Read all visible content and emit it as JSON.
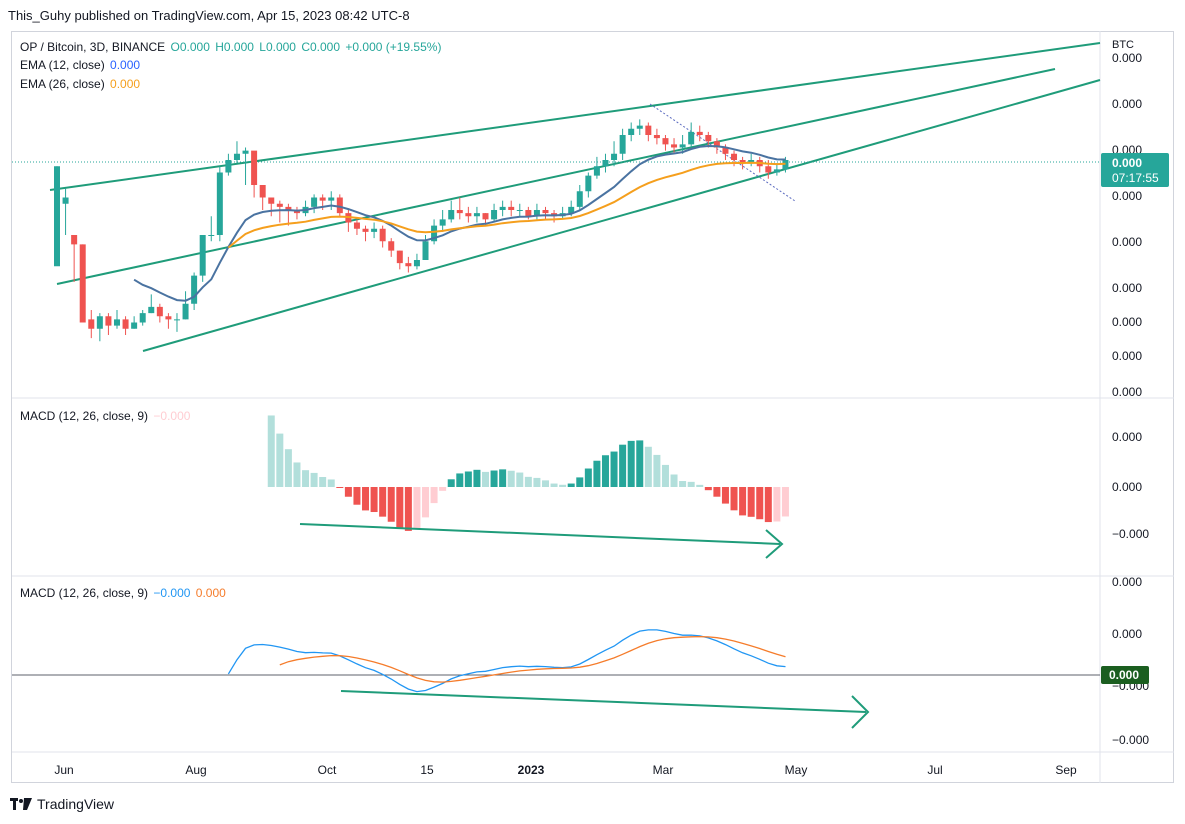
{
  "header": {
    "text": "This_Guhy published on TradingView.com, Apr 15, 2023 08:42 UTC-8"
  },
  "legend": {
    "symbol": "OP / Bitcoin, 3D, BINANCE",
    "o": "O0.000",
    "h": "H0.000",
    "l": "L0.000",
    "c": "C0.000",
    "change": "+0.000 (+19.55%)",
    "ema12_label": "EMA (12, close)",
    "ema12_value": "0.000",
    "ema26_label": "EMA (26, close)",
    "ema26_value": "0.000",
    "macd_hist_label": "MACD (12, 26, close, 9)",
    "macd_hist_value": "−0.000",
    "macd_line_label": "MACD (12, 26, close, 9)",
    "macd_line_value": "−0.000",
    "signal_value": "0.000"
  },
  "price_axis": {
    "currency": "BTC",
    "labels": [
      "0.000",
      "0.000",
      "0.000",
      "0.000",
      "0.000",
      "0.000",
      "0.000",
      "0.000",
      "0.000"
    ],
    "last_price": "0.000",
    "countdown": "07:17:55"
  },
  "macd_hist_axis": {
    "labels": [
      "0.000",
      "0.000",
      "−0.000"
    ]
  },
  "macd_line_axis": {
    "labels": [
      "0.000",
      "0.000",
      "−0.000",
      "−0.000"
    ],
    "zero_tag": "0.000"
  },
  "time_axis": {
    "labels": [
      "Jun",
      "Aug",
      "Oct",
      "15",
      "2023",
      "Mar",
      "May",
      "Jul",
      "Sep"
    ]
  },
  "footer": {
    "brand": "TradingView"
  },
  "colors": {
    "up": "#26a69a",
    "down": "#ef5350",
    "ema12": "#4a73a1",
    "ema26": "#f59f1d",
    "macd": "#2196f3",
    "signal": "#f57c2b",
    "trend": "#1f9c7a",
    "hist_up_strong": "#26a69a",
    "hist_up_weak": "#b2dfdb",
    "hist_down_strong": "#ef5350",
    "hist_down_weak": "#ffcdd2"
  },
  "chart_data": {
    "type": "candlestick",
    "note": "Price values are normalized 0-100 (axis labels print only 0.000)",
    "candles": [
      [
        50,
        82,
        82,
        70
      ],
      [
        70,
        72,
        75,
        60
      ],
      [
        60,
        57,
        60,
        45
      ],
      [
        57,
        32,
        57,
        32
      ],
      [
        33,
        30,
        36,
        27
      ],
      [
        30,
        34,
        35,
        26
      ],
      [
        34,
        31,
        35,
        28
      ],
      [
        31,
        33,
        36,
        30
      ],
      [
        33,
        30,
        34,
        28
      ],
      [
        30,
        32,
        34,
        30
      ],
      [
        32,
        35,
        36,
        31
      ],
      [
        35,
        37,
        41,
        35
      ],
      [
        37,
        34,
        38,
        32
      ],
      [
        34,
        33,
        35,
        30
      ],
      [
        33,
        33,
        35,
        29
      ],
      [
        33,
        38,
        42,
        33
      ],
      [
        38,
        47,
        48,
        36
      ],
      [
        47,
        60,
        60,
        45
      ],
      [
        60,
        60,
        66,
        58
      ],
      [
        60,
        80,
        82,
        58
      ],
      [
        80,
        84,
        86,
        79
      ],
      [
        84,
        86,
        90,
        83
      ],
      [
        86,
        87,
        88,
        76
      ],
      [
        87,
        76,
        79,
        72
      ],
      [
        76,
        72,
        74,
        68
      ],
      [
        72,
        70,
        72,
        66
      ],
      [
        70,
        69,
        71,
        64
      ],
      [
        69,
        68,
        70,
        63
      ],
      [
        68,
        67,
        69,
        65
      ],
      [
        67,
        69,
        71,
        66
      ],
      [
        69,
        72,
        73,
        67
      ],
      [
        72,
        71,
        73,
        68
      ],
      [
        71,
        72,
        74,
        68
      ],
      [
        72,
        67,
        73,
        66
      ],
      [
        67,
        64,
        68,
        61
      ],
      [
        64,
        62,
        65,
        60
      ],
      [
        62,
        61,
        63,
        58
      ],
      [
        61,
        62,
        64,
        59
      ],
      [
        62,
        58,
        63,
        56
      ],
      [
        58,
        55,
        59,
        53
      ],
      [
        55,
        51,
        55,
        49
      ],
      [
        51,
        50,
        53,
        48
      ],
      [
        50,
        52,
        54,
        49
      ],
      [
        52,
        58,
        60,
        52
      ],
      [
        58,
        63,
        65,
        57
      ],
      [
        63,
        65,
        68,
        61
      ],
      [
        65,
        68,
        71,
        64
      ],
      [
        68,
        67,
        72,
        65
      ],
      [
        67,
        66,
        69,
        64
      ],
      [
        66,
        67,
        69,
        64
      ],
      [
        67,
        65,
        67,
        63
      ],
      [
        65,
        68,
        70,
        64
      ],
      [
        68,
        69,
        71,
        66
      ],
      [
        69,
        68,
        71,
        66
      ],
      [
        68,
        68,
        70,
        66
      ],
      [
        68,
        66,
        69,
        65
      ],
      [
        66,
        68,
        70,
        65
      ],
      [
        68,
        67,
        69,
        65
      ],
      [
        67,
        66,
        68,
        64
      ],
      [
        66,
        67,
        69,
        65
      ],
      [
        67,
        69,
        71,
        66
      ],
      [
        69,
        74,
        76,
        68
      ],
      [
        74,
        79,
        80,
        72
      ],
      [
        79,
        82,
        85,
        78
      ],
      [
        82,
        84,
        86,
        80
      ],
      [
        84,
        86,
        90,
        82
      ],
      [
        86,
        92,
        94,
        84
      ],
      [
        92,
        94,
        96,
        90
      ],
      [
        94,
        95,
        97,
        92
      ],
      [
        95,
        92,
        96,
        90
      ],
      [
        92,
        91,
        94,
        89
      ],
      [
        91,
        89,
        92,
        87
      ],
      [
        89,
        88,
        91,
        86
      ],
      [
        88,
        89,
        92,
        86
      ],
      [
        89,
        93,
        96,
        88
      ],
      [
        93,
        92,
        95,
        90
      ],
      [
        92,
        90,
        93,
        88
      ],
      [
        90,
        88,
        91,
        86
      ],
      [
        88,
        86,
        89,
        84
      ],
      [
        86,
        84,
        87,
        82
      ],
      [
        84,
        83,
        85,
        81
      ],
      [
        83,
        84,
        86,
        82
      ],
      [
        84,
        82,
        85,
        80
      ],
      [
        82,
        80,
        84,
        78
      ],
      [
        80,
        81,
        83,
        79
      ],
      [
        81,
        84,
        85,
        80
      ]
    ]
  }
}
